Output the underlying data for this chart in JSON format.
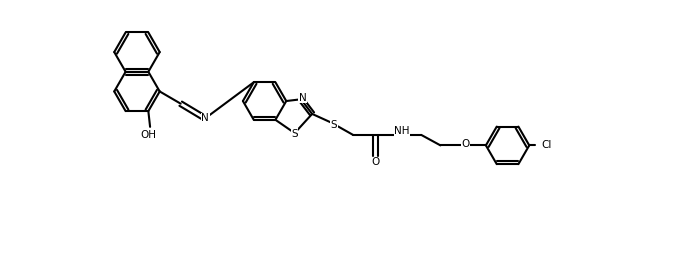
{
  "bg_color": "#ffffff",
  "line_color": "#000000",
  "atom_label_color": "#000000",
  "bond_width": 1.5,
  "figsize": [
    6.97,
    2.58
  ],
  "dpi": 100,
  "labels": {
    "N_imine": "N",
    "N_btz": "N",
    "S1_btz": "S",
    "S2_link": "S",
    "NH": "NH",
    "O_carbonyl": "O",
    "O_ether": "O",
    "Cl": "Cl",
    "OH": "OH"
  }
}
